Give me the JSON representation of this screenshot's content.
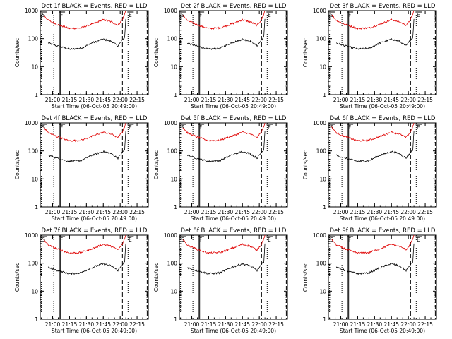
{
  "chart_data": [
    {
      "type": "line",
      "title": "Det 1f BLACK = Events, RED = LLD",
      "xlabel": "Start Time (06-Oct-05 20:49:00)",
      "ylabel": "Counts/sec",
      "x_ticks": [
        "21:00",
        "21:15",
        "21:30",
        "21:45",
        "22:00",
        "22:15"
      ],
      "y_ticks": [
        "1",
        "10",
        "100",
        "1000"
      ],
      "ylim": [
        1,
        1000
      ],
      "yscale": "log",
      "x": [
        "20:49",
        "20:52",
        "20:56",
        "21:04",
        "21:15",
        "21:25",
        "21:35",
        "21:45",
        "21:52",
        "21:58",
        "22:02",
        "22:04",
        "22:05"
      ],
      "series": [
        {
          "name": "BLACK",
          "color": "#000000",
          "values": [
            null,
            null,
            70,
            55,
            42,
            45,
            70,
            95,
            80,
            55,
            90,
            110,
            500
          ]
        },
        {
          "name": "RED",
          "color": "#e00000",
          "values": [
            null,
            700,
            450,
            320,
            230,
            240,
            330,
            470,
            400,
            300,
            480,
            750,
            1000
          ]
        }
      ],
      "vlines": {
        "dotted": [
          "20:50",
          "21:01",
          "22:07"
        ],
        "solid": [
          "21:06",
          "21:07"
        ],
        "dashed": [
          "22:02",
          "22:24"
        ]
      },
      "labels": [
        {
          "text": "S",
          "at": "20:50"
        },
        {
          "text": "F",
          "at": "21:06"
        },
        {
          "text": "E",
          "at": "22:07"
        }
      ]
    },
    {
      "type": "line",
      "title": "Det 2f BLACK = Events, RED = LLD",
      "xlabel": "Start Time (06-Oct-05 20:49:00)",
      "ylabel": "Counts/sec",
      "x_ticks": [
        "21:00",
        "21:15",
        "21:30",
        "21:45",
        "22:00",
        "22:15"
      ],
      "y_ticks": [
        "1",
        "10",
        "100",
        "1000"
      ],
      "ylim": [
        1,
        1000
      ],
      "yscale": "log",
      "x": [
        "20:49",
        "20:52",
        "20:56",
        "21:04",
        "21:15",
        "21:25",
        "21:35",
        "21:45",
        "21:52",
        "21:58",
        "22:02",
        "22:04",
        "22:05"
      ],
      "series": [
        {
          "name": "BLACK",
          "color": "#000000",
          "values": [
            null,
            null,
            70,
            55,
            42,
            45,
            70,
            95,
            80,
            55,
            90,
            110,
            500
          ]
        },
        {
          "name": "RED",
          "color": "#e00000",
          "values": [
            null,
            700,
            450,
            320,
            230,
            240,
            330,
            470,
            400,
            300,
            480,
            750,
            1000
          ]
        }
      ],
      "vlines": {
        "dotted": [
          "20:50",
          "21:01",
          "22:07"
        ],
        "solid": [
          "21:06",
          "21:07"
        ],
        "dashed": [
          "22:02",
          "22:24"
        ]
      },
      "labels": [
        {
          "text": "S",
          "at": "20:50"
        },
        {
          "text": "F",
          "at": "21:06"
        },
        {
          "text": "E",
          "at": "22:07"
        }
      ]
    },
    {
      "type": "line",
      "title": "Det 3f BLACK = Events, RED = LLD",
      "xlabel": "Start Time (06-Oct-05 20:49:00)",
      "ylabel": "Counts/sec",
      "x_ticks": [
        "21:00",
        "21:15",
        "21:30",
        "21:45",
        "22:00",
        "22:15"
      ],
      "y_ticks": [
        "1",
        "10",
        "100",
        "1000"
      ],
      "ylim": [
        1,
        1000
      ],
      "yscale": "log",
      "x": [
        "20:49",
        "20:52",
        "20:56",
        "21:04",
        "21:15",
        "21:25",
        "21:35",
        "21:45",
        "21:52",
        "21:58",
        "22:02",
        "22:04",
        "22:05"
      ],
      "series": [
        {
          "name": "BLACK",
          "color": "#000000",
          "values": [
            null,
            null,
            70,
            55,
            42,
            45,
            70,
            95,
            80,
            55,
            90,
            110,
            500
          ]
        },
        {
          "name": "RED",
          "color": "#e00000",
          "values": [
            null,
            700,
            450,
            320,
            230,
            240,
            330,
            470,
            400,
            300,
            480,
            750,
            1000
          ]
        }
      ],
      "vlines": {
        "dotted": [
          "20:50",
          "21:01",
          "22:07"
        ],
        "solid": [
          "21:06",
          "21:07"
        ],
        "dashed": [
          "22:02",
          "22:24"
        ]
      },
      "labels": [
        {
          "text": "S",
          "at": "20:50"
        },
        {
          "text": "F",
          "at": "21:06"
        },
        {
          "text": "E",
          "at": "22:07"
        }
      ]
    },
    {
      "type": "line",
      "title": "Det 4f BLACK = Events, RED = LLD",
      "xlabel": "Start Time (06-Oct-05 20:49:00)",
      "ylabel": "Counts/sec",
      "x_ticks": [
        "21:00",
        "21:15",
        "21:30",
        "21:45",
        "22:00",
        "22:15"
      ],
      "y_ticks": [
        "1",
        "10",
        "100",
        "1000"
      ],
      "ylim": [
        1,
        1000
      ],
      "yscale": "log",
      "x": [
        "20:49",
        "20:52",
        "20:56",
        "21:04",
        "21:15",
        "21:25",
        "21:35",
        "21:45",
        "21:52",
        "21:58",
        "22:02",
        "22:04",
        "22:05"
      ],
      "series": [
        {
          "name": "BLACK",
          "color": "#000000",
          "values": [
            null,
            null,
            70,
            55,
            42,
            45,
            70,
            95,
            80,
            55,
            90,
            110,
            500
          ]
        },
        {
          "name": "RED",
          "color": "#e00000",
          "values": [
            null,
            700,
            450,
            320,
            230,
            240,
            330,
            470,
            400,
            300,
            480,
            750,
            1000
          ]
        }
      ],
      "vlines": {
        "dotted": [
          "20:50",
          "21:01",
          "22:07"
        ],
        "solid": [
          "21:06",
          "21:07"
        ],
        "dashed": [
          "22:02",
          "22:24"
        ]
      },
      "labels": [
        {
          "text": "S",
          "at": "20:50"
        },
        {
          "text": "F",
          "at": "21:06"
        },
        {
          "text": "E",
          "at": "22:07"
        }
      ]
    },
    {
      "type": "line",
      "title": "Det 5f BLACK = Events, RED = LLD",
      "xlabel": "Start Time (06-Oct-05 20:49:00)",
      "ylabel": "Counts/sec",
      "x_ticks": [
        "21:00",
        "21:15",
        "21:30",
        "21:45",
        "22:00",
        "22:15"
      ],
      "y_ticks": [
        "1",
        "10",
        "100",
        "1000"
      ],
      "ylim": [
        1,
        1000
      ],
      "yscale": "log",
      "x": [
        "20:49",
        "20:52",
        "20:56",
        "21:04",
        "21:15",
        "21:25",
        "21:35",
        "21:45",
        "21:52",
        "21:58",
        "22:02",
        "22:04",
        "22:05"
      ],
      "series": [
        {
          "name": "BLACK",
          "color": "#000000",
          "values": [
            null,
            null,
            70,
            55,
            42,
            45,
            70,
            95,
            80,
            55,
            90,
            110,
            500
          ]
        },
        {
          "name": "RED",
          "color": "#e00000",
          "values": [
            null,
            700,
            450,
            320,
            230,
            240,
            330,
            470,
            400,
            300,
            480,
            750,
            1000
          ]
        }
      ],
      "vlines": {
        "dotted": [
          "20:50",
          "21:01",
          "22:07"
        ],
        "solid": [
          "21:06",
          "21:07"
        ],
        "dashed": [
          "22:02",
          "22:24"
        ]
      },
      "labels": [
        {
          "text": "S",
          "at": "20:50"
        },
        {
          "text": "F",
          "at": "21:06"
        },
        {
          "text": "E",
          "at": "22:07"
        }
      ]
    },
    {
      "type": "line",
      "title": "Det 6f BLACK = Events, RED = LLD",
      "xlabel": "Start Time (06-Oct-05 20:49:00)",
      "ylabel": "Counts/sec",
      "x_ticks": [
        "21:00",
        "21:15",
        "21:30",
        "21:45",
        "22:00",
        "22:15"
      ],
      "y_ticks": [
        "1",
        "10",
        "100",
        "1000"
      ],
      "ylim": [
        1,
        1000
      ],
      "yscale": "log",
      "x": [
        "20:49",
        "20:52",
        "20:56",
        "21:04",
        "21:15",
        "21:25",
        "21:35",
        "21:45",
        "21:52",
        "21:58",
        "22:02",
        "22:04",
        "22:05"
      ],
      "series": [
        {
          "name": "BLACK",
          "color": "#000000",
          "values": [
            null,
            null,
            70,
            55,
            42,
            45,
            70,
            95,
            80,
            55,
            90,
            110,
            500
          ]
        },
        {
          "name": "RED",
          "color": "#e00000",
          "values": [
            null,
            700,
            450,
            320,
            230,
            240,
            330,
            470,
            400,
            300,
            480,
            750,
            1000
          ]
        }
      ],
      "vlines": {
        "dotted": [
          "20:50",
          "21:01",
          "22:07"
        ],
        "solid": [
          "21:06",
          "21:07"
        ],
        "dashed": [
          "22:02",
          "22:24"
        ]
      },
      "labels": [
        {
          "text": "S",
          "at": "20:50"
        },
        {
          "text": "F",
          "at": "21:06"
        },
        {
          "text": "E",
          "at": "22:07"
        }
      ]
    },
    {
      "type": "line",
      "title": "Det 7f BLACK = Events, RED = LLD",
      "xlabel": "Start Time (06-Oct-05 20:49:00)",
      "ylabel": "Counts/sec",
      "x_ticks": [
        "21:00",
        "21:15",
        "21:30",
        "21:45",
        "22:00",
        "22:15"
      ],
      "y_ticks": [
        "1",
        "10",
        "100",
        "1000"
      ],
      "ylim": [
        1,
        1000
      ],
      "yscale": "log",
      "x": [
        "20:49",
        "20:52",
        "20:56",
        "21:04",
        "21:15",
        "21:25",
        "21:35",
        "21:45",
        "21:52",
        "21:58",
        "22:02",
        "22:04",
        "22:05"
      ],
      "series": [
        {
          "name": "BLACK",
          "color": "#000000",
          "values": [
            null,
            null,
            70,
            55,
            42,
            45,
            70,
            95,
            80,
            55,
            90,
            110,
            500
          ]
        },
        {
          "name": "RED",
          "color": "#e00000",
          "values": [
            null,
            700,
            450,
            320,
            230,
            240,
            330,
            470,
            400,
            300,
            480,
            750,
            1000
          ]
        }
      ],
      "vlines": {
        "dotted": [
          "20:50",
          "21:01",
          "22:07"
        ],
        "solid": [
          "21:06",
          "21:07"
        ],
        "dashed": [
          "22:02",
          "22:24"
        ]
      },
      "labels": [
        {
          "text": "S",
          "at": "20:50"
        },
        {
          "text": "F",
          "at": "21:06"
        },
        {
          "text": "E",
          "at": "22:07"
        }
      ]
    },
    {
      "type": "line",
      "title": "Det 8f BLACK = Events, RED = LLD",
      "xlabel": "Start Time (06-Oct-05 20:49:00)",
      "ylabel": "Counts/sec",
      "x_ticks": [
        "21:00",
        "21:15",
        "21:30",
        "21:45",
        "22:00",
        "22:15"
      ],
      "y_ticks": [
        "1",
        "10",
        "100",
        "1000"
      ],
      "ylim": [
        1,
        1000
      ],
      "yscale": "log",
      "x": [
        "20:49",
        "20:52",
        "20:56",
        "21:04",
        "21:15",
        "21:25",
        "21:35",
        "21:45",
        "21:52",
        "21:58",
        "22:02",
        "22:04",
        "22:05"
      ],
      "series": [
        {
          "name": "BLACK",
          "color": "#000000",
          "values": [
            null,
            null,
            70,
            55,
            42,
            45,
            70,
            95,
            80,
            55,
            90,
            110,
            500
          ]
        },
        {
          "name": "RED",
          "color": "#e00000",
          "values": [
            null,
            700,
            450,
            320,
            230,
            240,
            330,
            470,
            400,
            300,
            480,
            750,
            1000
          ]
        }
      ],
      "vlines": {
        "dotted": [
          "20:50",
          "21:01",
          "22:07"
        ],
        "solid": [
          "21:06",
          "21:07"
        ],
        "dashed": [
          "22:02",
          "22:24"
        ]
      },
      "labels": [
        {
          "text": "S",
          "at": "20:50"
        },
        {
          "text": "F",
          "at": "21:06"
        },
        {
          "text": "E",
          "at": "22:07"
        }
      ]
    },
    {
      "type": "line",
      "title": "Det 9f BLACK = Events, RED = LLD",
      "xlabel": "Start Time (06-Oct-05 20:49:00)",
      "ylabel": "Counts/sec",
      "x_ticks": [
        "21:00",
        "21:15",
        "21:30",
        "21:45",
        "22:00",
        "22:15"
      ],
      "y_ticks": [
        "1",
        "10",
        "100",
        "1000"
      ],
      "ylim": [
        1,
        1000
      ],
      "yscale": "log",
      "x": [
        "20:49",
        "20:52",
        "20:56",
        "21:04",
        "21:15",
        "21:25",
        "21:35",
        "21:45",
        "21:52",
        "21:58",
        "22:02",
        "22:04",
        "22:05"
      ],
      "series": [
        {
          "name": "BLACK",
          "color": "#000000",
          "values": [
            null,
            null,
            70,
            55,
            42,
            45,
            70,
            95,
            80,
            55,
            90,
            110,
            500
          ]
        },
        {
          "name": "RED",
          "color": "#e00000",
          "values": [
            null,
            700,
            450,
            320,
            230,
            240,
            330,
            470,
            400,
            300,
            480,
            750,
            1000
          ]
        }
      ],
      "vlines": {
        "dotted": [
          "20:50",
          "21:01",
          "22:07"
        ],
        "solid": [
          "21:06",
          "21:07"
        ],
        "dashed": [
          "22:02",
          "22:24"
        ]
      },
      "labels": [
        {
          "text": "S",
          "at": "20:50"
        },
        {
          "text": "F",
          "at": "21:06"
        },
        {
          "text": "E",
          "at": "22:07"
        }
      ]
    }
  ]
}
